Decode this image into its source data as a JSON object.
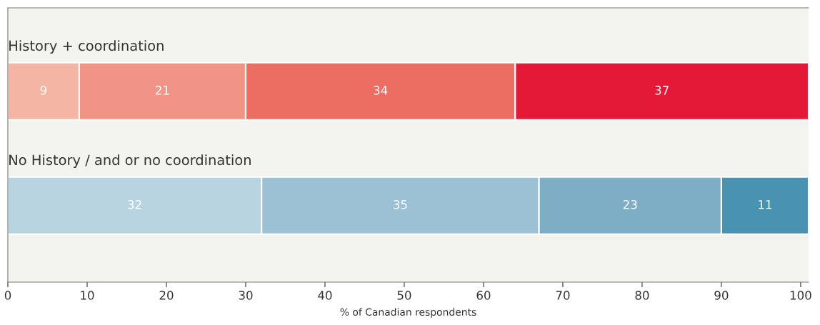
{
  "chart_data": {
    "type": "bar",
    "orientation": "horizontal",
    "stacked": true,
    "categories": [
      "History + coordination",
      "No History / and or no coordination"
    ],
    "series": [
      {
        "colors": [
          "#f5b5a5",
          "#b8d4e1"
        ],
        "values": [
          9,
          32
        ]
      },
      {
        "colors": [
          "#f09585",
          "#9cc1d4"
        ],
        "values": [
          21,
          35
        ]
      },
      {
        "colors": [
          "#ec6e62",
          "#7eaec6"
        ],
        "values": [
          34,
          23
        ]
      },
      {
        "colors": [
          "#e31937",
          "#4a93b0"
        ],
        "values": [
          37,
          11
        ]
      }
    ],
    "xlim": [
      0,
      101
    ],
    "xticks": [
      0,
      10,
      20,
      30,
      40,
      50,
      60,
      70,
      80,
      90,
      100
    ],
    "xlabel": "% of Canadian respondents",
    "data_labels": true,
    "tick_labels": "x",
    "grid": false
  }
}
